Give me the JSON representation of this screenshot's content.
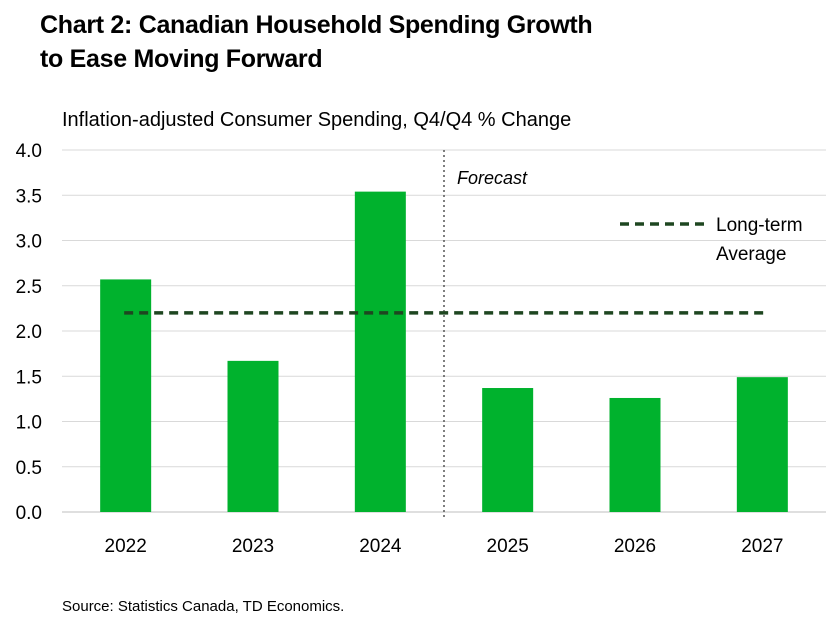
{
  "title_line1": "Chart 2: Canadian Household Spending Growth",
  "title_line2": "to Ease Moving Forward",
  "subtitle": "Inflation-adjusted Consumer Spending, Q4/Q4 % Change",
  "source": "Source: Statistics Canada, TD Economics.",
  "colors": {
    "bar": "#00b22d",
    "average_line": "#1e4620",
    "gridline": "#d9d9d9",
    "forecast_divider": "#555555"
  },
  "chart_data": {
    "type": "bar",
    "categories": [
      "2022",
      "2023",
      "2024",
      "2025",
      "2026",
      "2027"
    ],
    "values": [
      2.57,
      1.67,
      3.54,
      1.37,
      1.26,
      1.49
    ],
    "ylim": [
      0,
      4
    ],
    "y_ticks": [
      "0.0",
      "0.5",
      "1.0",
      "1.5",
      "2.0",
      "2.5",
      "3.0",
      "3.5",
      "4.0"
    ],
    "y_tick_values": [
      0,
      0.5,
      1,
      1.5,
      2,
      2.5,
      3,
      3.5,
      4
    ],
    "grid": true,
    "long_term_average": 2.2,
    "forecast_start_after": "2024",
    "annotation": "Forecast",
    "legend": {
      "position": "top-right",
      "entries": [
        {
          "label_line1": "Long-term",
          "label_line2": "Average",
          "style": "dashed"
        }
      ]
    }
  }
}
